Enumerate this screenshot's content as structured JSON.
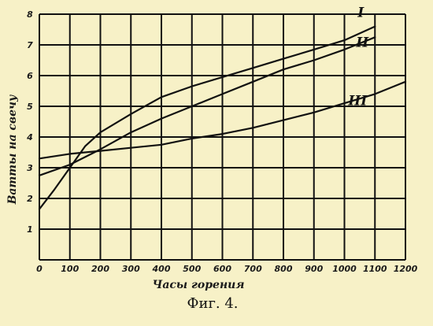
{
  "chart_data": {
    "type": "line",
    "title": "",
    "xlabel": "Часы горения",
    "ylabel": "Ватты на свечу",
    "xlim": [
      0,
      1200
    ],
    "ylim": [
      0,
      8
    ],
    "x_ticks": [
      "0",
      "100",
      "200",
      "300",
      "400",
      "500",
      "600",
      "700",
      "800",
      "900",
      "1000",
      "1100",
      "1200"
    ],
    "y_ticks": [
      "1",
      "2",
      "3",
      "4",
      "5",
      "6",
      "7",
      "8"
    ],
    "grid": true,
    "series": [
      {
        "name": "I",
        "x": [
          0,
          50,
          100,
          150,
          200,
          300,
          400,
          500,
          600,
          700,
          800,
          900,
          1000,
          1100
        ],
        "y": [
          1.65,
          2.3,
          3.0,
          3.7,
          4.15,
          4.75,
          5.3,
          5.65,
          5.95,
          6.25,
          6.55,
          6.85,
          7.15,
          7.6
        ]
      },
      {
        "name": "II",
        "x": [
          0,
          100,
          200,
          300,
          400,
          500,
          600,
          700,
          800,
          900,
          1000,
          1100
        ],
        "y": [
          2.75,
          3.1,
          3.6,
          4.15,
          4.6,
          5.0,
          5.4,
          5.8,
          6.2,
          6.5,
          6.85,
          7.25
        ]
      },
      {
        "name": "III",
        "x": [
          0,
          100,
          200,
          300,
          400,
          500,
          600,
          700,
          800,
          900,
          1000,
          1100,
          1200
        ],
        "y": [
          3.3,
          3.45,
          3.55,
          3.65,
          3.75,
          3.95,
          4.1,
          4.3,
          4.55,
          4.8,
          5.1,
          5.4,
          5.8
        ]
      }
    ]
  },
  "caption": "Фиг. 4."
}
